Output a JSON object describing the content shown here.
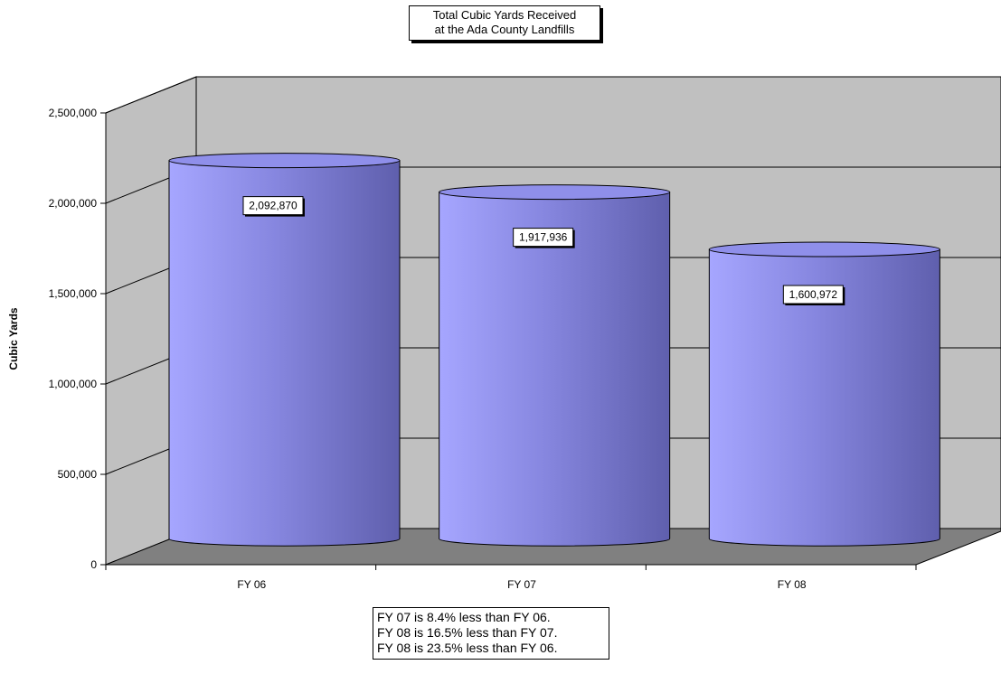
{
  "chart_data": {
    "type": "bar",
    "title": "Total Cubic Yards Received at the Ada County Landfills",
    "title_lines": [
      "Total Cubic Yards Received",
      "at the Ada County Landfills"
    ],
    "ylabel": "Cubic Yards",
    "xlabel": "",
    "categories": [
      "FY 06",
      "FY 07",
      "FY 08"
    ],
    "series": [
      {
        "values": [
          2092870,
          1917936,
          1600972
        ],
        "color": "#8f8fea"
      }
    ],
    "data_labels": [
      "2,092,870",
      "1,917,936",
      "1,600,972"
    ],
    "ylim": [
      0,
      2500000
    ],
    "y_ticks": [
      0,
      500000,
      1000000,
      1500000,
      2000000,
      2500000
    ],
    "y_tick_labels": [
      "0",
      "500,000",
      "1,000,000",
      "1,500,000",
      "2,000,000",
      "2,500,000"
    ],
    "grid": true,
    "legend": "none",
    "style": "3d-cylinder",
    "colors": {
      "wall": "#c0c0c0",
      "floor": "#808080",
      "bar": "#8f8fea"
    }
  },
  "notes": [
    "FY 07 is 8.4% less than FY 06.",
    "FY 08 is 16.5% less than FY 07.",
    "FY 08 is 23.5% less than FY 06."
  ]
}
